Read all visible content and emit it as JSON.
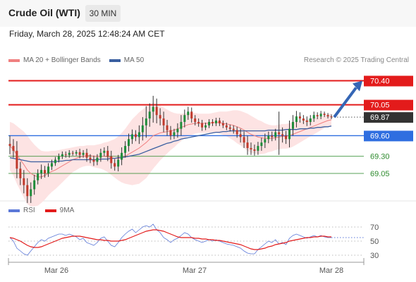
{
  "header": {
    "title": "Crude Oil (WTI)",
    "interval": "30 MIN",
    "datetime": "Friday, March 28, 2025 12:48:24 AM CET",
    "copyright": "Research © 2025 Trading Central"
  },
  "legend": {
    "ma20_label": "MA 20 + Bollinger Bands",
    "ma50_label": "MA 50",
    "rsi_label": "RSI",
    "nine_ma_label": "9MA"
  },
  "colors": {
    "candle_up": "#1e8c3a",
    "candle_down": "#c0392b",
    "resistance": "#e31b1b",
    "support": "#2f6ee0",
    "ma20": "#f08080",
    "ma50": "#3a5fa0",
    "band_fill": "#fde3e3",
    "minor_level": "#2e8b2e",
    "current": "#333333",
    "rsi": "#5b78d8",
    "nine_ma": "#e31b1b",
    "arrow": "#3566b5"
  },
  "chart_data": [
    {
      "type": "candlestick",
      "x_ticks": [
        "Mar 26",
        "Mar 27",
        "Mar 28"
      ],
      "ylim": [
        68.65,
        70.6
      ],
      "levels": [
        {
          "value": 70.4,
          "label": "70.40",
          "kind": "resistance"
        },
        {
          "value": 70.05,
          "label": "70.05",
          "kind": "resistance"
        },
        {
          "value": 69.87,
          "label": "69.87",
          "kind": "current"
        },
        {
          "value": 69.6,
          "label": "69.60",
          "kind": "support"
        },
        {
          "value": 69.3,
          "label": "69.30",
          "kind": "minor"
        },
        {
          "value": 69.05,
          "label": "69.05",
          "kind": "minor"
        }
      ],
      "close": [
        69.45,
        69.38,
        69.12,
        68.98,
        68.88,
        68.72,
        68.82,
        68.95,
        69.05,
        69.1,
        69.05,
        69.15,
        69.2,
        69.25,
        69.3,
        69.33,
        69.32,
        69.35,
        69.34,
        69.36,
        69.32,
        69.35,
        69.28,
        69.25,
        69.22,
        69.28,
        69.35,
        69.38,
        69.3,
        69.2,
        69.15,
        69.25,
        69.35,
        69.45,
        69.55,
        69.62,
        69.58,
        69.65,
        69.75,
        69.85,
        69.95,
        70.02,
        69.9,
        69.85,
        69.75,
        69.68,
        69.6,
        69.65,
        69.7,
        69.8,
        69.9,
        69.95,
        69.85,
        69.8,
        69.78,
        69.72,
        69.75,
        69.8,
        69.78,
        69.82,
        69.78,
        69.75,
        69.72,
        69.7,
        69.68,
        69.62,
        69.58,
        69.5,
        69.42,
        69.4,
        69.38,
        69.45,
        69.5,
        69.55,
        69.6,
        69.58,
        69.65,
        69.62,
        69.6,
        69.55,
        69.7,
        69.8,
        69.88,
        69.85,
        69.82,
        69.8,
        69.85,
        69.9,
        69.88,
        69.92,
        69.9,
        69.88,
        69.87
      ],
      "spread": [
        0.12,
        0.1,
        0.14,
        0.1,
        0.12,
        0.1,
        0.1,
        0.08,
        0.06,
        0.08,
        0.06,
        0.05,
        0.05,
        0.04,
        0.04,
        0.04,
        0.04,
        0.04,
        0.03,
        0.03,
        0.05,
        0.04,
        0.06,
        0.05,
        0.06,
        0.05,
        0.06,
        0.05,
        0.07,
        0.08,
        0.06,
        0.07,
        0.08,
        0.07,
        0.08,
        0.07,
        0.06,
        0.1,
        0.12,
        0.18,
        0.12,
        0.16,
        0.12,
        0.1,
        0.1,
        0.08,
        0.06,
        0.05,
        0.08,
        0.1,
        0.08,
        0.07,
        0.06,
        0.05,
        0.05,
        0.05,
        0.04,
        0.04,
        0.04,
        0.04,
        0.04,
        0.04,
        0.04,
        0.04,
        0.05,
        0.05,
        0.08,
        0.08,
        0.1,
        0.08,
        0.07,
        0.06,
        0.07,
        0.08,
        0.06,
        0.06,
        0.05,
        0.3,
        0.1,
        0.07,
        0.12,
        0.1,
        0.08,
        0.06,
        0.05,
        0.06,
        0.05,
        0.05,
        0.04,
        0.04,
        0.03,
        0.03,
        0.03
      ],
      "series": [
        {
          "name": "MA 20",
          "values": [
            69.45,
            69.4,
            69.32,
            69.25,
            69.18,
            69.1,
            69.05,
            69.02,
            69.0,
            69.0,
            69.02,
            69.05,
            69.08,
            69.1,
            69.13,
            69.16,
            69.19,
            69.22,
            69.25,
            69.27,
            69.29,
            69.3,
            69.31,
            69.31,
            69.3,
            69.3,
            69.3,
            69.3,
            69.29,
            69.28,
            69.27,
            69.27,
            69.28,
            69.3,
            69.33,
            69.36,
            69.39,
            69.42,
            69.46,
            69.5,
            69.55,
            69.6,
            69.62,
            69.64,
            69.65,
            69.66,
            69.67,
            69.68,
            69.7,
            69.72,
            69.74,
            69.76,
            69.77,
            69.78,
            69.78,
            69.78,
            69.78,
            69.78,
            69.79,
            69.79,
            69.79,
            69.78,
            69.77,
            69.76,
            69.75,
            69.73,
            69.71,
            69.68,
            69.65,
            69.62,
            69.6,
            69.58,
            69.57,
            69.56,
            69.56,
            69.56,
            69.57,
            69.58,
            69.59,
            69.59,
            69.6,
            69.62,
            69.64,
            69.66,
            69.68,
            69.7,
            69.72,
            69.74,
            69.76,
            69.78,
            69.8,
            69.82,
            69.83
          ]
        },
        {
          "name": "MA 50",
          "values": [
            69.28,
            69.27,
            69.26,
            69.25,
            69.24,
            69.23,
            69.22,
            69.22,
            69.22,
            69.22,
            69.22,
            69.22,
            69.22,
            69.22,
            69.23,
            69.23,
            69.24,
            69.24,
            69.25,
            69.25,
            69.25,
            69.25,
            69.25,
            69.25,
            69.25,
            69.25,
            69.26,
            69.26,
            69.26,
            69.27,
            69.27,
            69.28,
            69.28,
            69.29,
            69.3,
            69.31,
            69.32,
            69.33,
            69.35,
            69.37,
            69.39,
            69.41,
            69.43,
            69.45,
            69.47,
            69.49,
            69.5,
            69.52,
            69.53,
            69.55,
            69.56,
            69.57,
            69.58,
            69.59,
            69.6,
            69.61,
            69.62,
            69.63,
            69.64,
            69.65,
            69.65,
            69.66,
            69.66,
            69.67,
            69.67,
            69.67,
            69.67,
            69.67,
            69.67,
            69.67,
            69.67,
            69.67,
            69.67,
            69.67,
            69.68,
            69.68,
            69.68,
            69.68,
            69.68,
            69.69,
            69.69,
            69.69,
            69.69,
            69.7,
            69.7,
            69.7,
            69.71,
            69.71,
            69.72,
            69.72,
            69.73,
            69.73,
            69.74
          ]
        }
      ],
      "band_width": [
        0.35,
        0.38,
        0.42,
        0.45,
        0.48,
        0.5,
        0.48,
        0.45,
        0.42,
        0.38,
        0.35,
        0.32,
        0.3,
        0.28,
        0.26,
        0.24,
        0.22,
        0.2,
        0.18,
        0.17,
        0.16,
        0.15,
        0.15,
        0.15,
        0.16,
        0.17,
        0.18,
        0.2,
        0.22,
        0.25,
        0.28,
        0.32,
        0.36,
        0.4,
        0.44,
        0.48,
        0.5,
        0.52,
        0.52,
        0.52,
        0.5,
        0.48,
        0.44,
        0.4,
        0.36,
        0.32,
        0.28,
        0.25,
        0.22,
        0.2,
        0.18,
        0.17,
        0.16,
        0.15,
        0.14,
        0.14,
        0.14,
        0.14,
        0.14,
        0.15,
        0.16,
        0.17,
        0.18,
        0.2,
        0.22,
        0.24,
        0.25,
        0.26,
        0.27,
        0.27,
        0.26,
        0.25,
        0.24,
        0.22,
        0.2,
        0.19,
        0.18,
        0.18,
        0.18,
        0.18,
        0.18,
        0.18,
        0.17,
        0.16,
        0.15,
        0.14,
        0.13,
        0.12,
        0.11,
        0.1,
        0.09,
        0.09,
        0.09
      ]
    },
    {
      "type": "line",
      "ylim": [
        20,
        80
      ],
      "y_ticks": [
        70,
        50,
        30
      ],
      "series": [
        {
          "name": "RSI",
          "values": [
            55,
            50,
            40,
            36,
            32,
            30,
            36,
            42,
            48,
            52,
            50,
            54,
            56,
            58,
            60,
            60,
            58,
            60,
            58,
            56,
            52,
            54,
            48,
            46,
            44,
            48,
            54,
            56,
            50,
            44,
            42,
            48,
            55,
            60,
            64,
            67,
            62,
            66,
            70,
            72,
            70,
            74,
            66,
            62,
            55,
            52,
            48,
            52,
            54,
            58,
            62,
            60,
            55,
            52,
            50,
            48,
            50,
            52,
            50,
            52,
            50,
            48,
            46,
            45,
            44,
            42,
            40,
            36,
            33,
            32,
            32,
            38,
            42,
            46,
            50,
            48,
            52,
            46,
            48,
            45,
            54,
            58,
            60,
            58,
            56,
            54,
            56,
            58,
            56,
            58,
            56,
            55,
            55
          ]
        },
        {
          "name": "9MA",
          "values": [
            55,
            54,
            52,
            50,
            47,
            44,
            42,
            41,
            41,
            42,
            44,
            46,
            48,
            50,
            52,
            54,
            55,
            56,
            57,
            57,
            57,
            56,
            55,
            54,
            53,
            52,
            52,
            51,
            51,
            50,
            50,
            50,
            51,
            52,
            54,
            56,
            58,
            60,
            62,
            64,
            65,
            66,
            66,
            65,
            64,
            62,
            60,
            58,
            56,
            55,
            55,
            55,
            55,
            54,
            54,
            53,
            53,
            52,
            52,
            51,
            51,
            50,
            49,
            48,
            47,
            46,
            45,
            43,
            41,
            39,
            38,
            38,
            39,
            40,
            42,
            43,
            45,
            46,
            47,
            48,
            50,
            51,
            52,
            53,
            54,
            55,
            55,
            56,
            56,
            57,
            57,
            56,
            56
          ]
        }
      ]
    }
  ]
}
